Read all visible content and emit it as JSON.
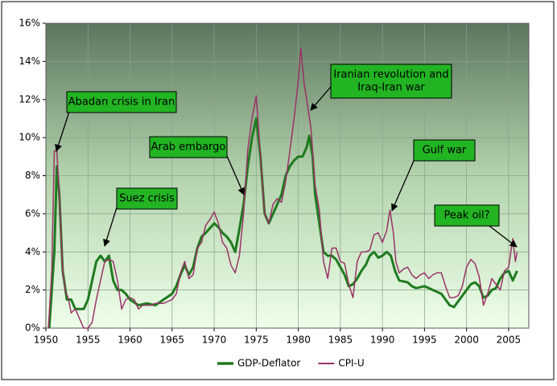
{
  "chart_data": {
    "type": "line",
    "xlim": [
      1950,
      2007.4
    ],
    "xticks": [
      1950,
      1955,
      1960,
      1965,
      1970,
      1975,
      1980,
      1985,
      1990,
      1995,
      2000,
      2005
    ],
    "ylim": [
      0,
      16
    ],
    "yticks": [
      {
        "value": 0,
        "label": "0%"
      },
      {
        "value": 2,
        "label": "2%"
      },
      {
        "value": 4,
        "label": "4%"
      },
      {
        "value": 6,
        "label": "6%"
      },
      {
        "value": 8,
        "label": "8%"
      },
      {
        "value": 10,
        "label": "10%"
      },
      {
        "value": 12,
        "label": "12%"
      },
      {
        "value": 14,
        "label": "14%"
      },
      {
        "value": 16,
        "label": "16%"
      }
    ],
    "grid": true,
    "legend": "bottom",
    "series": [
      {
        "name": "GDP-Deflator",
        "color": "#1f7a1f",
        "width": 3,
        "x": [
          1950.4,
          1951,
          1951.3,
          1951.6,
          1952,
          1952.5,
          1953,
          1953.5,
          1954,
          1954.5,
          1955,
          1955.5,
          1956,
          1956.5,
          1957,
          1957.5,
          1958,
          1958.5,
          1959,
          1959.5,
          1960,
          1961,
          1962,
          1963,
          1964,
          1965,
          1965.5,
          1966,
          1966.5,
          1967,
          1967.5,
          1968,
          1968.5,
          1969,
          1970,
          1970.5,
          1971,
          1971.5,
          1972,
          1972.5,
          1973,
          1973.5,
          1974,
          1974.5,
          1975,
          1975.5,
          1976,
          1976.5,
          1977,
          1977.5,
          1978,
          1978.5,
          1979,
          1979.5,
          1980,
          1980.5,
          1981,
          1981.3,
          1981.7,
          1982,
          1982.5,
          1983,
          1983.5,
          1984,
          1984.5,
          1985,
          1985.5,
          1986,
          1986.5,
          1987,
          1987.5,
          1988,
          1988.5,
          1989,
          1989.5,
          1990,
          1990.5,
          1991,
          1991.5,
          1992,
          1993,
          1993.5,
          1994,
          1995,
          1996,
          1997,
          1998,
          1998.5,
          1999,
          2000,
          2000.5,
          2001,
          2001.5,
          2002,
          2002.5,
          2003,
          2003.5,
          2004,
          2004.5,
          2005,
          2005.5,
          2006
        ],
        "values": [
          0,
          4,
          8.5,
          7,
          3,
          1.5,
          1.5,
          1,
          1,
          1,
          1.5,
          2.5,
          3.5,
          3.8,
          3.5,
          3.8,
          2.5,
          2,
          2,
          1.8,
          1.5,
          1.2,
          1.3,
          1.2,
          1.5,
          1.8,
          2.2,
          2.8,
          3.3,
          2.8,
          3.2,
          4.2,
          4.8,
          5,
          5.5,
          5.3,
          5,
          4.8,
          4.5,
          4,
          5.2,
          6.5,
          8.5,
          10,
          11,
          9,
          6,
          5.5,
          6,
          6.5,
          7,
          8,
          8.5,
          8.8,
          9,
          9,
          9.5,
          10.1,
          9,
          7,
          5.5,
          4,
          3.8,
          3.8,
          3.6,
          3.2,
          2.8,
          2.2,
          2.3,
          2.6,
          3,
          3.3,
          3.8,
          4,
          3.7,
          3.8,
          4,
          3.8,
          3,
          2.5,
          2.4,
          2.2,
          2.1,
          2.2,
          2,
          1.8,
          1.2,
          1.1,
          1.4,
          2,
          2.3,
          2.4,
          2.2,
          1.6,
          1.7,
          2,
          2.1,
          2.6,
          2.9,
          3,
          2.5,
          3
        ]
      },
      {
        "name": "CPI-U",
        "color": "#993366",
        "width": 1.5,
        "x": [
          1950.3,
          1950.7,
          1951,
          1951.3,
          1951.6,
          1952,
          1952.3,
          1952.7,
          1953,
          1953.5,
          1954,
          1954.5,
          1955,
          1955.5,
          1956,
          1956.5,
          1957,
          1957.5,
          1958,
          1958.5,
          1959,
          1959.5,
          1960,
          1960.5,
          1961,
          1961.5,
          1962,
          1962.5,
          1963,
          1964,
          1965,
          1965.5,
          1966,
          1966.5,
          1967,
          1967.5,
          1968,
          1968.5,
          1969,
          1969.5,
          1970,
          1970.5,
          1971,
          1971.5,
          1972,
          1972.5,
          1973,
          1973.5,
          1974,
          1974.5,
          1975,
          1975.2,
          1975.5,
          1976,
          1976.5,
          1977,
          1977.5,
          1978,
          1978.5,
          1979,
          1979.5,
          1980,
          1980.3,
          1980.7,
          1981,
          1981.5,
          1982,
          1982.5,
          1983,
          1983.5,
          1984,
          1984.5,
          1985,
          1985.5,
          1986,
          1986.5,
          1987,
          1987.5,
          1988,
          1988.5,
          1989,
          1989.5,
          1990,
          1990.5,
          1990.9,
          1991.3,
          1991.6,
          1992,
          1992.5,
          1993,
          1993.5,
          1994,
          1994.5,
          1995,
          1995.5,
          1996,
          1996.5,
          1997,
          1997.5,
          1998,
          1998.5,
          1999,
          1999.5,
          2000,
          2000.5,
          2001,
          2001.5,
          2002,
          2002.5,
          2003,
          2003.5,
          2004,
          2004.5,
          2005,
          2005.5,
          2005.8,
          2006
        ],
        "values": [
          0,
          3,
          9.3,
          9.3,
          7,
          3,
          2,
          1.5,
          0.8,
          1,
          0.5,
          0,
          0,
          0.3,
          1.5,
          2.5,
          3.5,
          3.6,
          3.5,
          2.5,
          1,
          1.5,
          1.6,
          1.5,
          1,
          1.2,
          1.2,
          1.2,
          1.3,
          1.3,
          1.5,
          1.8,
          2.9,
          3.5,
          2.6,
          2.8,
          4.2,
          4.5,
          5.4,
          5.7,
          6.1,
          5.5,
          4.5,
          4.2,
          3.3,
          2.9,
          3.8,
          6,
          9.4,
          11,
          12.2,
          11,
          9,
          6,
          5.5,
          6.5,
          6.8,
          6.6,
          7.7,
          9.3,
          11,
          13,
          14.7,
          12.8,
          12,
          10.5,
          7.5,
          6.2,
          3.5,
          2.6,
          4.2,
          4.2,
          3.5,
          3.4,
          2.3,
          1.6,
          3.5,
          4,
          4,
          4.1,
          4.9,
          5,
          4.5,
          5.1,
          6.2,
          5,
          3.5,
          2.9,
          3.1,
          3.2,
          2.8,
          2.6,
          2.8,
          2.9,
          2.6,
          2.8,
          2.9,
          2.9,
          2.2,
          1.6,
          1.6,
          1.7,
          2.2,
          3.2,
          3.6,
          3.4,
          2.7,
          1.2,
          1.8,
          2.6,
          2.3,
          2,
          3,
          3.2,
          4.7,
          3.5,
          4
        ]
      }
    ],
    "annotations": [
      {
        "text": [
          "Abadan crisis in Iran"
        ]
      },
      {
        "text": [
          "Suez crisis"
        ]
      },
      {
        "text": [
          "Arab embargo"
        ]
      },
      {
        "text": [
          "Iranian revolution and",
          "Iraq-Iran war"
        ]
      },
      {
        "text": [
          "Gulf war"
        ]
      },
      {
        "text": [
          "Peak oil?"
        ]
      }
    ],
    "annotation_color": "#22b422"
  }
}
